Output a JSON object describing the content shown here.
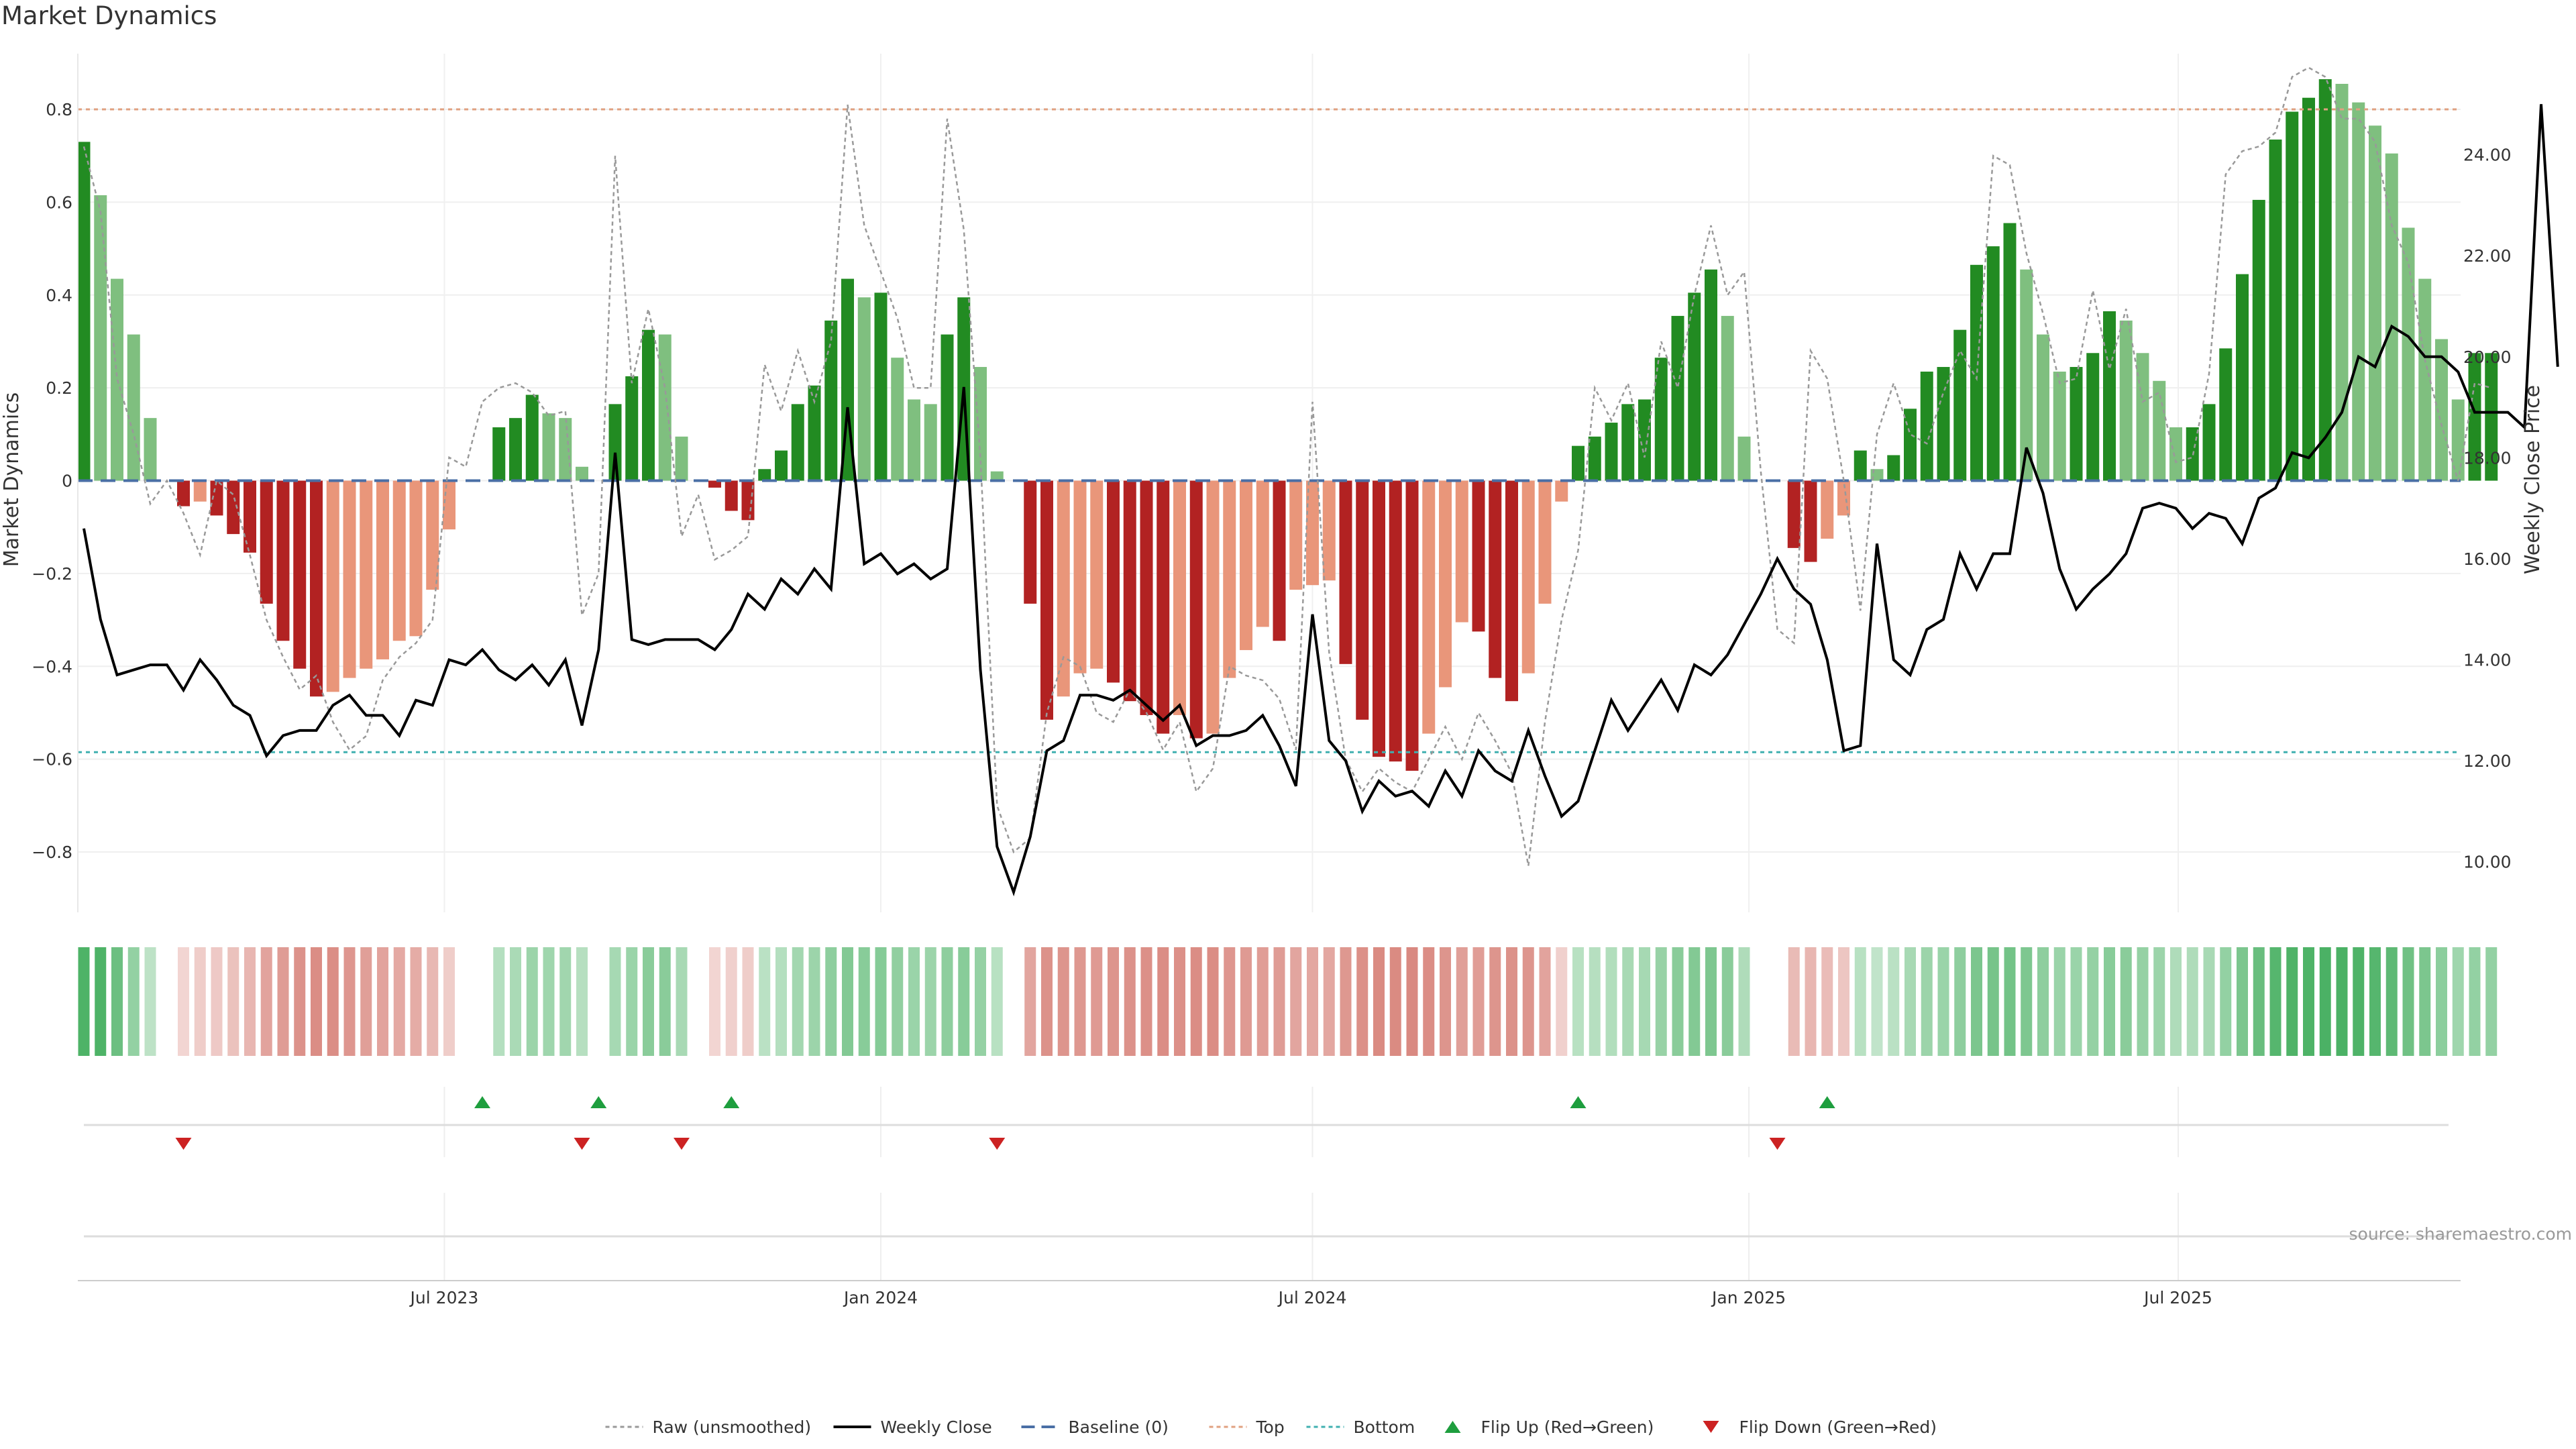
{
  "title": "Market Dynamics",
  "source": "source: sharemaestro.com",
  "chart_data": {
    "type": "bar",
    "start_week": "2023-01-30",
    "ylabel_left": "Market Dynamics",
    "ylabel_right": "Weekly Close Price",
    "ylim_left": [
      -0.93,
      0.92
    ],
    "ylim_right": [
      9.0,
      26.0
    ],
    "left_ticks": [
      0.8,
      0.6,
      0.4,
      0.2,
      0,
      -0.2,
      -0.4,
      -0.6,
      -0.8
    ],
    "left_tick_labels": [
      "0.8",
      "0.6",
      "0.4",
      "0.2",
      "0",
      "−0.2",
      "−0.4",
      "−0.6",
      "−0.8"
    ],
    "right_ticks": [
      24,
      22,
      20,
      18,
      16,
      14,
      12,
      10
    ],
    "right_tick_labels": [
      "24.00",
      "22.00",
      "20.00",
      "18.00",
      "16.00",
      "14.00",
      "12.00",
      "10.00"
    ],
    "x_ticks": [
      {
        "date": "2023-07-01",
        "label": "Jul 2023"
      },
      {
        "date": "2024-01-01",
        "label": "Jan 2024"
      },
      {
        "date": "2024-07-01",
        "label": "Jul 2024"
      },
      {
        "date": "2025-01-01",
        "label": "Jan 2025"
      },
      {
        "date": "2025-07-01",
        "label": "Jul 2025"
      }
    ],
    "top_level": 0.8,
    "bottom_level": -0.585,
    "baseline": 0,
    "grid": true,
    "legend_position": "bottom-center",
    "colors": {
      "strong_green": "#228b22",
      "light_green": "#7fbf7f",
      "strong_red": "#b22222",
      "light_red": "#e9967a",
      "raw": "#999999",
      "close": "#000000",
      "baseline": "#4a6fa5",
      "top": "#e0a080",
      "bottom": "#40b0b0",
      "flip_up": "#1e9e3e",
      "flip_down": "#cc2222"
    },
    "dynamics": [
      0.73,
      0.615,
      0.435,
      0.315,
      0.135,
      null,
      -0.055,
      -0.045,
      -0.075,
      -0.115,
      -0.155,
      -0.265,
      -0.345,
      -0.405,
      -0.465,
      -0.455,
      -0.425,
      -0.405,
      -0.385,
      -0.345,
      -0.335,
      -0.235,
      -0.105,
      null,
      null,
      0.115,
      0.135,
      0.185,
      0.145,
      0.135,
      0.03,
      null,
      0.165,
      0.225,
      0.325,
      0.315,
      0.095,
      null,
      -0.015,
      -0.065,
      -0.085,
      0.025,
      0.065,
      0.165,
      0.205,
      0.345,
      0.435,
      0.395,
      0.405,
      0.265,
      0.175,
      0.165,
      0.315,
      0.395,
      0.245,
      0.02,
      null,
      -0.265,
      -0.515,
      -0.465,
      -0.415,
      -0.405,
      -0.435,
      -0.475,
      -0.505,
      -0.545,
      -0.505,
      -0.555,
      -0.545,
      -0.425,
      -0.365,
      -0.315,
      -0.345,
      -0.235,
      -0.225,
      -0.215,
      -0.395,
      -0.515,
      -0.595,
      -0.605,
      -0.625,
      -0.545,
      -0.445,
      -0.305,
      -0.325,
      -0.425,
      -0.475,
      -0.415,
      -0.265,
      -0.045,
      0.075,
      0.095,
      0.125,
      0.165,
      0.175,
      0.265,
      0.355,
      0.405,
      0.455,
      0.355,
      0.095,
      null,
      null,
      -0.145,
      -0.175,
      -0.125,
      -0.075,
      0.065,
      0.025,
      0.055,
      0.155,
      0.235,
      0.245,
      0.325,
      0.465,
      0.505,
      0.555,
      0.455,
      0.315,
      0.235,
      0.245,
      0.275,
      0.365,
      0.345,
      0.275,
      0.215,
      0.115,
      0.115,
      0.165,
      0.285,
      0.445,
      0.605,
      0.735,
      0.795,
      0.825,
      0.865,
      0.855,
      0.815,
      0.765,
      0.705,
      0.545,
      0.435,
      0.305,
      0.175,
      0.275,
      0.275
    ],
    "raw": [
      0.72,
      0.58,
      0.22,
      0.1,
      -0.05,
      0.0,
      -0.07,
      -0.16,
      0.0,
      -0.03,
      -0.16,
      -0.3,
      -0.38,
      -0.45,
      -0.42,
      -0.52,
      -0.58,
      -0.55,
      -0.43,
      -0.38,
      -0.35,
      -0.3,
      0.05,
      0.03,
      0.17,
      0.2,
      0.21,
      0.19,
      0.14,
      0.15,
      -0.29,
      -0.2,
      0.7,
      0.21,
      0.37,
      0.2,
      -0.12,
      -0.03,
      -0.17,
      -0.15,
      -0.12,
      0.25,
      0.15,
      0.28,
      0.17,
      0.3,
      0.81,
      0.55,
      0.45,
      0.35,
      0.2,
      0.2,
      0.78,
      0.54,
      0.05,
      -0.7,
      -0.8,
      -0.77,
      -0.5,
      -0.38,
      -0.4,
      -0.5,
      -0.52,
      -0.45,
      -0.5,
      -0.58,
      -0.52,
      -0.67,
      -0.62,
      -0.4,
      -0.42,
      -0.43,
      -0.47,
      -0.58,
      0.17,
      -0.37,
      -0.6,
      -0.67,
      -0.62,
      -0.65,
      -0.67,
      -0.6,
      -0.53,
      -0.6,
      -0.5,
      -0.56,
      -0.63,
      -0.83,
      -0.52,
      -0.3,
      -0.15,
      0.2,
      0.13,
      0.21,
      0.05,
      0.3,
      0.2,
      0.4,
      0.55,
      0.4,
      0.45,
      0.02,
      -0.32,
      -0.35,
      0.28,
      0.22,
      0.0,
      -0.28,
      0.1,
      0.21,
      0.1,
      0.08,
      0.19,
      0.28,
      0.22,
      0.7,
      0.68,
      0.49,
      0.36,
      0.21,
      0.22,
      0.41,
      0.24,
      0.37,
      0.17,
      0.19,
      0.04,
      0.05,
      0.23,
      0.66,
      0.71,
      0.72,
      0.75,
      0.87,
      0.89,
      0.87,
      0.78,
      0.78,
      0.73,
      0.55,
      0.47,
      0.26,
      0.12,
      0.0,
      0.21,
      0.2
    ],
    "close": [
      16.6,
      14.8,
      13.7,
      13.8,
      13.9,
      13.9,
      13.4,
      14.0,
      13.6,
      13.1,
      12.9,
      12.1,
      12.5,
      12.6,
      12.6,
      13.1,
      13.3,
      12.9,
      12.9,
      12.5,
      13.2,
      13.1,
      14.0,
      13.9,
      14.2,
      13.8,
      13.6,
      13.9,
      13.5,
      14.0,
      12.7,
      14.2,
      18.1,
      14.4,
      14.3,
      14.4,
      14.4,
      14.4,
      14.2,
      14.6,
      15.3,
      15.0,
      15.6,
      15.3,
      15.8,
      15.4,
      19.0,
      15.9,
      16.1,
      15.7,
      15.9,
      15.6,
      15.8,
      19.4,
      13.8,
      10.3,
      9.4,
      10.5,
      12.2,
      12.4,
      13.3,
      13.3,
      13.2,
      13.4,
      13.1,
      12.8,
      13.1,
      12.3,
      12.5,
      12.5,
      12.6,
      12.9,
      12.3,
      11.5,
      14.9,
      12.4,
      12.0,
      11.0,
      11.6,
      11.3,
      11.4,
      11.1,
      11.8,
      11.3,
      12.2,
      11.8,
      11.6,
      12.6,
      11.7,
      10.9,
      11.2,
      12.2,
      13.2,
      12.6,
      13.1,
      13.6,
      13.0,
      13.9,
      13.7,
      14.1,
      14.7,
      15.3,
      16.0,
      15.4,
      15.1,
      14.0,
      12.2,
      12.3,
      16.3,
      14.0,
      13.7,
      14.6,
      14.8,
      16.1,
      15.4,
      16.1,
      16.1,
      18.2,
      17.3,
      15.8,
      15.0,
      15.4,
      15.7,
      16.1,
      17.0,
      17.1,
      17.0,
      16.6,
      16.9,
      16.8,
      16.3,
      17.2,
      17.4,
      18.1,
      18.0,
      18.4,
      18.9,
      20.0,
      19.8,
      20.6,
      20.4,
      20.0,
      20.0,
      19.7,
      18.9,
      18.9,
      18.9,
      18.6,
      25.0,
      19.8
    ],
    "heat": [
      0.59,
      0.59,
      0.46,
      0.29,
      0.11,
      0.0,
      -0.11,
      -0.16,
      -0.18,
      -0.23,
      -0.3,
      -0.41,
      -0.46,
      -0.52,
      -0.55,
      -0.54,
      -0.49,
      -0.44,
      -0.41,
      -0.38,
      -0.36,
      -0.29,
      -0.16,
      0.0,
      0.0,
      0.15,
      0.19,
      0.25,
      0.24,
      0.23,
      0.14,
      0.0,
      0.21,
      0.26,
      0.33,
      0.33,
      0.2,
      0.0,
      -0.11,
      -0.14,
      -0.16,
      0.12,
      0.15,
      0.22,
      0.25,
      0.31,
      0.36,
      0.34,
      0.35,
      0.3,
      0.26,
      0.25,
      0.31,
      0.34,
      0.28,
      0.13,
      0.0,
      -0.4,
      -0.52,
      -0.5,
      -0.48,
      -0.47,
      -0.5,
      -0.52,
      -0.53,
      -0.55,
      -0.53,
      -0.55,
      -0.55,
      -0.49,
      -0.47,
      -0.45,
      -0.46,
      -0.4,
      -0.39,
      -0.39,
      -0.48,
      -0.53,
      -0.56,
      -0.56,
      -0.57,
      -0.55,
      -0.5,
      -0.44,
      -0.45,
      -0.5,
      -0.52,
      -0.5,
      -0.41,
      -0.14,
      0.13,
      0.14,
      0.16,
      0.2,
      0.21,
      0.27,
      0.33,
      0.36,
      0.38,
      0.33,
      0.17,
      0.0,
      0.0,
      -0.27,
      -0.3,
      -0.26,
      -0.2,
      0.13,
      0.09,
      0.12,
      0.2,
      0.25,
      0.26,
      0.31,
      0.39,
      0.41,
      0.43,
      0.38,
      0.31,
      0.26,
      0.26,
      0.28,
      0.34,
      0.33,
      0.28,
      0.25,
      0.17,
      0.17,
      0.2,
      0.29,
      0.39,
      0.47,
      0.55,
      0.58,
      0.59,
      0.6,
      0.6,
      0.58,
      0.55,
      0.52,
      0.44,
      0.39,
      0.32,
      0.24,
      0.29,
      0.29
    ],
    "flips_up": [
      24,
      31,
      39,
      90,
      105
    ],
    "flips_down": [
      6,
      30,
      36,
      55,
      102
    ]
  },
  "legend": [
    {
      "label": "Raw (unsmoothed)",
      "style": "raw"
    },
    {
      "label": "Weekly Close",
      "style": "close"
    },
    {
      "label": "Baseline (0)",
      "style": "baseline"
    },
    {
      "label": "Top",
      "style": "top"
    },
    {
      "label": "Bottom",
      "style": "bottom"
    },
    {
      "label": "Flip Up (Red→Green)",
      "style": "flip_up"
    },
    {
      "label": "Flip Down (Green→Red)",
      "style": "flip_down"
    }
  ]
}
